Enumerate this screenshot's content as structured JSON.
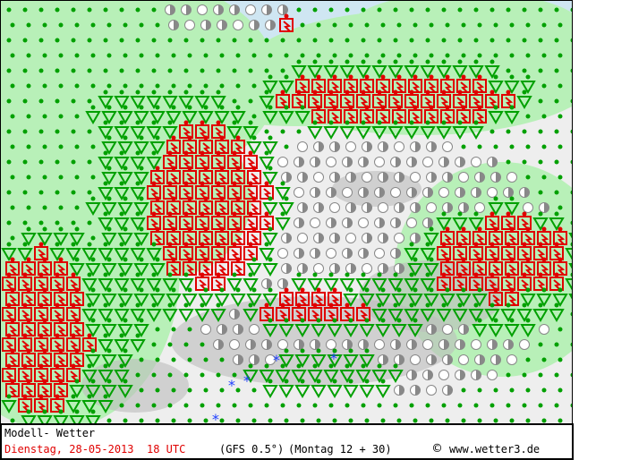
{
  "footer": {
    "title": "Modell- Wetter",
    "date": "Dienstag, 28-05-2013",
    "time": "18 UTC",
    "model": "(GFS 0.5°)",
    "run": "(Montag 12 + 30)",
    "copyright": "©",
    "site": "www.wetter3.de"
  },
  "colors": {
    "thunderstorm": "#e00000",
    "shower": "#00a000",
    "drizzle": "#00a000",
    "cloud": "#888888",
    "snow": "#2040ff",
    "sea": "#cfe6f2",
    "precip_area": "#b8f0b8",
    "terrain": "#bdbdbd"
  },
  "symbols": [
    "thunderstorm-icon",
    "rain-shower-icon",
    "drizzle-dot-icon",
    "cloud-cover-icon",
    "snow-icon"
  ]
}
